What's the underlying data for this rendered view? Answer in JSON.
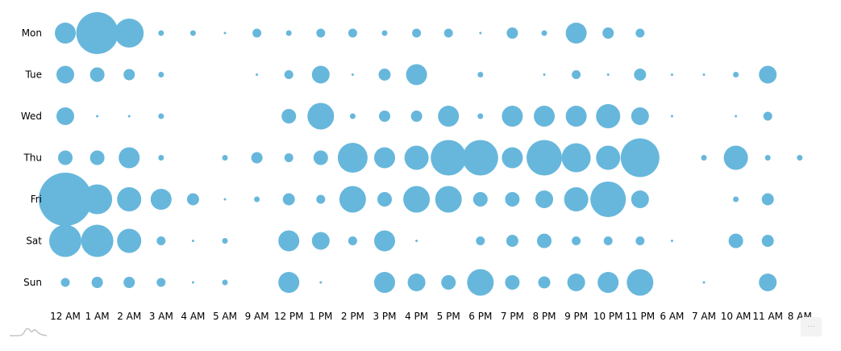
{
  "chart_data": {
    "type": "bubble-heatmap",
    "title": "",
    "xlabel": "",
    "ylabel": "",
    "color": "#67b7dc",
    "legend": "none",
    "grid": false,
    "categories": [
      "12 AM",
      "1 AM",
      "2 AM",
      "3 AM",
      "4 AM",
      "5 AM",
      "9 AM",
      "12 PM",
      "1 PM",
      "2 PM",
      "3 PM",
      "4 PM",
      "5 PM",
      "6 PM",
      "7 PM",
      "8 PM",
      "9 PM",
      "10 PM",
      "11 PM",
      "6 AM",
      "7 AM",
      "10 AM",
      "11 AM",
      "8 AM"
    ],
    "rows": [
      "Mon",
      "Tue",
      "Wed",
      "Thu",
      "Fri",
      "Sat",
      "Sun"
    ],
    "value_note": "approximate relative bubble radius (px); null = no bubble",
    "series": [
      {
        "name": "Mon",
        "values": [
          13,
          26,
          18,
          3.5,
          3.5,
          1.5,
          5.5,
          3.5,
          5.5,
          5.5,
          3.5,
          5.5,
          5.5,
          1.5,
          7,
          3.5,
          13,
          7,
          5.5,
          null,
          null,
          null,
          null,
          null
        ]
      },
      {
        "name": "Tue",
        "values": [
          11,
          9,
          7,
          3.5,
          null,
          null,
          1.5,
          5.5,
          11,
          1.5,
          7.5,
          13,
          null,
          3.5,
          null,
          1.5,
          5.5,
          1.5,
          7.5,
          1.5,
          1.5,
          3.5,
          11,
          null
        ]
      },
      {
        "name": "Wed",
        "values": [
          11,
          1.5,
          1.5,
          3.5,
          null,
          null,
          null,
          9,
          16.5,
          3.5,
          7,
          7,
          13,
          3.5,
          13,
          13,
          13,
          15,
          11,
          1.5,
          null,
          1.5,
          5.5,
          null
        ]
      },
      {
        "name": "Thu",
        "values": [
          9,
          9,
          13,
          3.5,
          null,
          3.5,
          7,
          5.5,
          9,
          18.5,
          13,
          15,
          22,
          22,
          13,
          22,
          18,
          15,
          24,
          null,
          3.5,
          15,
          3.5,
          3.5
        ]
      },
      {
        "name": "Fri",
        "values": [
          33,
          18.5,
          15,
          13,
          7.5,
          1.5,
          3.5,
          7.5,
          5.5,
          16.5,
          9,
          16.5,
          16.5,
          9,
          9,
          11,
          15,
          22,
          11,
          null,
          null,
          3.5,
          7.5,
          null
        ]
      },
      {
        "name": "Sat",
        "values": [
          20,
          20,
          15,
          5.5,
          1.5,
          3.5,
          null,
          13,
          11,
          5.5,
          13,
          1.5,
          null,
          5.5,
          7.5,
          9,
          5.5,
          5.5,
          5.5,
          1.5,
          null,
          9,
          7.5,
          null
        ]
      },
      {
        "name": "Sun",
        "values": [
          5.5,
          7,
          7,
          5.5,
          1.5,
          3.5,
          null,
          13,
          1.5,
          null,
          13,
          11,
          9,
          16.5,
          9,
          7.5,
          11,
          13,
          16.5,
          null,
          1.5,
          null,
          11,
          null
        ]
      }
    ],
    "layout": {
      "x0": 81,
      "dx": 39.6,
      "y0": 41,
      "dy": 51.5
    }
  },
  "menu_button": {
    "label": "..."
  }
}
